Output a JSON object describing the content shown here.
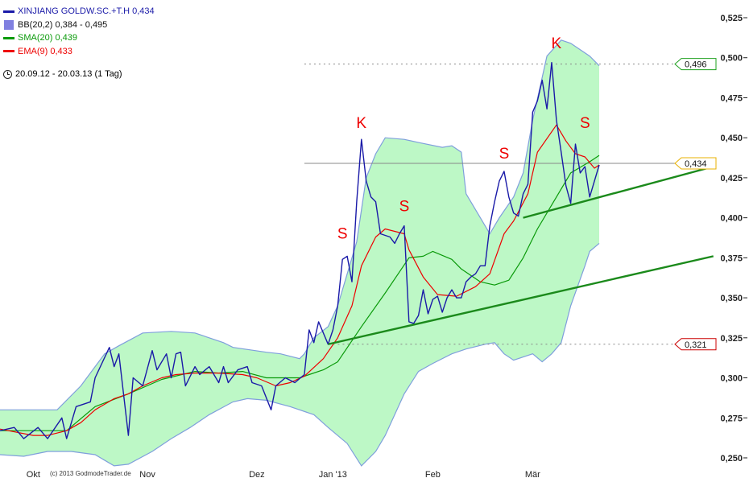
{
  "legend": {
    "price": {
      "label": "XINJIANG GOLDW.SC.+T.H 0,434",
      "color": "#1a1aa8"
    },
    "bb": {
      "label": "BB(20,2) 0,384 - 0,495",
      "color": "#8080e0"
    },
    "sma": {
      "label": "SMA(20) 0,439",
      "color": "#0a9a0a"
    },
    "ema": {
      "label": "EMA(9) 0,433",
      "color": "#ee0000"
    }
  },
  "period": {
    "icon": "clock-icon",
    "label": "20.09.12 - 20.03.13 (1 Tag)"
  },
  "copyright": "(c) 2013 GodmodeTrader.de",
  "chart_data": {
    "type": "line",
    "xlabel": "",
    "ylabel": "",
    "ylim": [
      0.245,
      0.53
    ],
    "grid": false,
    "y_ticks": [
      "0,525",
      "0,500",
      "0,475",
      "0,450",
      "0,425",
      "0,400",
      "0,375",
      "0,350",
      "0,325",
      "0,300",
      "0,275",
      "0,250"
    ],
    "y_tick_values": [
      0.525,
      0.5,
      0.475,
      0.45,
      0.425,
      0.4,
      0.375,
      0.35,
      0.325,
      0.3,
      0.275,
      0.25
    ],
    "x_ticks": [
      {
        "label": "Okt",
        "index": 7
      },
      {
        "label": "Nov",
        "index": 31
      },
      {
        "label": "Dez",
        "index": 54
      },
      {
        "label": "Jan '13",
        "index": 70
      },
      {
        "label": "Feb",
        "index": 91
      },
      {
        "label": "Mär",
        "index": 112
      }
    ],
    "x_unit": "trading day index",
    "series": [
      {
        "name": "XINJIANG GOLDW.SC.+T.H",
        "color": "#1a1aa8",
        "points": [
          [
            0,
            0.267
          ],
          [
            3,
            0.269
          ],
          [
            5,
            0.262
          ],
          [
            8,
            0.269
          ],
          [
            10,
            0.262
          ],
          [
            13,
            0.275
          ],
          [
            14,
            0.262
          ],
          [
            16,
            0.282
          ],
          [
            19,
            0.285
          ],
          [
            20,
            0.3
          ],
          [
            23,
            0.319
          ],
          [
            24,
            0.307
          ],
          [
            25,
            0.315
          ],
          [
            27,
            0.264
          ],
          [
            28,
            0.3
          ],
          [
            30,
            0.295
          ],
          [
            32,
            0.317
          ],
          [
            33,
            0.305
          ],
          [
            35,
            0.315
          ],
          [
            36,
            0.3
          ],
          [
            37,
            0.315
          ],
          [
            38,
            0.316
          ],
          [
            39,
            0.295
          ],
          [
            41,
            0.307
          ],
          [
            42,
            0.302
          ],
          [
            44,
            0.307
          ],
          [
            46,
            0.297
          ],
          [
            47,
            0.307
          ],
          [
            48,
            0.297
          ],
          [
            50,
            0.305
          ],
          [
            52,
            0.307
          ],
          [
            53,
            0.297
          ],
          [
            55,
            0.295
          ],
          [
            57,
            0.28
          ],
          [
            58,
            0.295
          ],
          [
            60,
            0.3
          ],
          [
            62,
            0.297
          ],
          [
            64,
            0.302
          ],
          [
            65,
            0.33
          ],
          [
            66,
            0.322
          ],
          [
            67,
            0.335
          ],
          [
            69,
            0.321
          ],
          [
            70,
            0.33
          ],
          [
            71,
            0.345
          ],
          [
            72,
            0.374
          ],
          [
            73,
            0.376
          ],
          [
            74,
            0.36
          ],
          [
            75,
            0.41
          ],
          [
            76,
            0.449
          ],
          [
            77,
            0.423
          ],
          [
            78,
            0.413
          ],
          [
            79,
            0.41
          ],
          [
            80,
            0.39
          ],
          [
            81,
            0.389
          ],
          [
            82,
            0.388
          ],
          [
            83,
            0.384
          ],
          [
            84,
            0.39
          ],
          [
            85,
            0.395
          ],
          [
            86,
            0.335
          ],
          [
            87,
            0.334
          ],
          [
            88,
            0.339
          ],
          [
            89,
            0.355
          ],
          [
            90,
            0.34
          ],
          [
            91,
            0.349
          ],
          [
            92,
            0.351
          ],
          [
            93,
            0.341
          ],
          [
            94,
            0.35
          ],
          [
            95,
            0.355
          ],
          [
            96,
            0.35
          ],
          [
            97,
            0.35
          ],
          [
            98,
            0.36
          ],
          [
            99,
            0.363
          ],
          [
            100,
            0.365
          ],
          [
            101,
            0.37
          ],
          [
            102,
            0.37
          ],
          [
            103,
            0.395
          ],
          [
            104,
            0.41
          ],
          [
            105,
            0.423
          ],
          [
            106,
            0.429
          ],
          [
            107,
            0.413
          ],
          [
            108,
            0.403
          ],
          [
            109,
            0.401
          ],
          [
            110,
            0.415
          ],
          [
            111,
            0.421
          ],
          [
            112,
            0.466
          ],
          [
            113,
            0.473
          ],
          [
            114,
            0.486
          ],
          [
            115,
            0.468
          ],
          [
            116,
            0.497
          ],
          [
            117,
            0.461
          ],
          [
            118,
            0.441
          ],
          [
            119,
            0.42
          ],
          [
            120,
            0.409
          ],
          [
            121,
            0.446
          ],
          [
            122,
            0.428
          ],
          [
            123,
            0.432
          ],
          [
            124,
            0.413
          ],
          [
            126,
            0.433
          ]
        ]
      },
      {
        "name": "SMA(20)",
        "color": "#0a9a0a",
        "points": [
          [
            0,
            0.267
          ],
          [
            14,
            0.267
          ],
          [
            20,
            0.282
          ],
          [
            27,
            0.29
          ],
          [
            34,
            0.299
          ],
          [
            41,
            0.304
          ],
          [
            46,
            0.303
          ],
          [
            51,
            0.304
          ],
          [
            56,
            0.3
          ],
          [
            63,
            0.3
          ],
          [
            65,
            0.302
          ],
          [
            68,
            0.305
          ],
          [
            71,
            0.31
          ],
          [
            76,
            0.332
          ],
          [
            81,
            0.353
          ],
          [
            86,
            0.375
          ],
          [
            89,
            0.376
          ],
          [
            91,
            0.379
          ],
          [
            95,
            0.374
          ],
          [
            97,
            0.368
          ],
          [
            101,
            0.36
          ],
          [
            104,
            0.358
          ],
          [
            107,
            0.361
          ],
          [
            110,
            0.375
          ],
          [
            113,
            0.393
          ],
          [
            117,
            0.413
          ],
          [
            120,
            0.428
          ],
          [
            124,
            0.435
          ],
          [
            126,
            0.439
          ]
        ]
      },
      {
        "name": "EMA(9)",
        "color": "#ee0000",
        "points": [
          [
            0,
            0.268
          ],
          [
            7,
            0.264
          ],
          [
            10,
            0.264
          ],
          [
            14,
            0.267
          ],
          [
            17,
            0.272
          ],
          [
            20,
            0.28
          ],
          [
            24,
            0.287
          ],
          [
            27,
            0.29
          ],
          [
            30,
            0.295
          ],
          [
            34,
            0.3
          ],
          [
            37,
            0.302
          ],
          [
            41,
            0.303
          ],
          [
            46,
            0.303
          ],
          [
            51,
            0.302
          ],
          [
            54,
            0.3
          ],
          [
            58,
            0.295
          ],
          [
            61,
            0.297
          ],
          [
            64,
            0.301
          ],
          [
            68,
            0.312
          ],
          [
            71,
            0.325
          ],
          [
            74,
            0.345
          ],
          [
            76,
            0.37
          ],
          [
            79,
            0.388
          ],
          [
            81,
            0.393
          ],
          [
            85,
            0.39
          ],
          [
            86,
            0.38
          ],
          [
            89,
            0.363
          ],
          [
            92,
            0.352
          ],
          [
            96,
            0.351
          ],
          [
            100,
            0.357
          ],
          [
            103,
            0.365
          ],
          [
            106,
            0.39
          ],
          [
            108,
            0.398
          ],
          [
            111,
            0.415
          ],
          [
            113,
            0.441
          ],
          [
            117,
            0.458
          ],
          [
            119,
            0.448
          ],
          [
            121,
            0.44
          ],
          [
            123,
            0.438
          ],
          [
            125,
            0.431
          ],
          [
            126,
            0.433
          ]
        ]
      }
    ],
    "bollinger": {
      "name": "BB(20,2)",
      "fill": "#bdf8c6",
      "stroke": "#7f9fdc",
      "upper": [
        [
          0,
          0.28
        ],
        [
          12,
          0.28
        ],
        [
          17,
          0.295
        ],
        [
          22,
          0.315
        ],
        [
          25,
          0.32
        ],
        [
          30,
          0.328
        ],
        [
          36,
          0.329
        ],
        [
          41,
          0.328
        ],
        [
          47,
          0.322
        ],
        [
          49,
          0.319
        ],
        [
          56,
          0.316
        ],
        [
          59,
          0.315
        ],
        [
          63,
          0.312
        ],
        [
          64,
          0.315
        ],
        [
          66,
          0.325
        ],
        [
          69,
          0.332
        ],
        [
          71,
          0.345
        ],
        [
          75,
          0.385
        ],
        [
          77,
          0.425
        ],
        [
          79,
          0.44
        ],
        [
          81,
          0.45
        ],
        [
          85,
          0.449
        ],
        [
          88,
          0.447
        ],
        [
          93,
          0.444
        ],
        [
          95,
          0.445
        ],
        [
          97,
          0.441
        ],
        [
          98,
          0.415
        ],
        [
          101,
          0.4
        ],
        [
          103,
          0.39
        ],
        [
          105,
          0.4
        ],
        [
          108,
          0.413
        ],
        [
          110,
          0.428
        ],
        [
          112,
          0.461
        ],
        [
          115,
          0.501
        ],
        [
          118,
          0.511
        ],
        [
          120,
          0.509
        ],
        [
          124,
          0.501
        ],
        [
          126,
          0.495
        ]
      ],
      "lower": [
        [
          0,
          0.252
        ],
        [
          5,
          0.251
        ],
        [
          10,
          0.254
        ],
        [
          15,
          0.254
        ],
        [
          20,
          0.252
        ],
        [
          24,
          0.245
        ],
        [
          27,
          0.246
        ],
        [
          32,
          0.254
        ],
        [
          36,
          0.262
        ],
        [
          40,
          0.269
        ],
        [
          44,
          0.277
        ],
        [
          49,
          0.285
        ],
        [
          52,
          0.287
        ],
        [
          56,
          0.286
        ],
        [
          61,
          0.282
        ],
        [
          66,
          0.277
        ],
        [
          69,
          0.269
        ],
        [
          73,
          0.259
        ],
        [
          76,
          0.245
        ],
        [
          79,
          0.254
        ],
        [
          81,
          0.264
        ],
        [
          85,
          0.29
        ],
        [
          88,
          0.304
        ],
        [
          91,
          0.309
        ],
        [
          95,
          0.315
        ],
        [
          98,
          0.318
        ],
        [
          102,
          0.321
        ],
        [
          104,
          0.322
        ],
        [
          106,
          0.315
        ],
        [
          108,
          0.311
        ],
        [
          112,
          0.315
        ],
        [
          114,
          0.31
        ],
        [
          116,
          0.315
        ],
        [
          118,
          0.322
        ],
        [
          120,
          0.345
        ],
        [
          123,
          0.37
        ],
        [
          124,
          0.379
        ],
        [
          126,
          0.384
        ]
      ]
    },
    "trendlines": [
      {
        "color": "#1b8a1b",
        "from": [
          69,
          0.321
        ],
        "to": [
          150,
          0.376
        ]
      },
      {
        "color": "#1b8a1b",
        "from": [
          110,
          0.4
        ],
        "to": [
          150,
          0.432
        ]
      }
    ],
    "horizontal_lines": [
      {
        "value": 0.496,
        "from_index": 64,
        "style": "dotted",
        "color": "#888888"
      },
      {
        "value": 0.434,
        "from_index": 64,
        "style": "solid",
        "color": "#888888"
      },
      {
        "value": 0.321,
        "from_index": 69,
        "style": "dotted",
        "color": "#888888"
      }
    ],
    "value_tags": [
      {
        "label": "0,496",
        "value": 0.496,
        "color": "#1ea01e"
      },
      {
        "label": "0,434",
        "value": 0.434,
        "color": "#e8b000"
      },
      {
        "label": "0,321",
        "value": 0.321,
        "color": "#cc0000"
      }
    ],
    "annotations": [
      {
        "text": "S",
        "index": 72,
        "value": 0.387
      },
      {
        "text": "K",
        "index": 76,
        "value": 0.456
      },
      {
        "text": "S",
        "index": 85,
        "value": 0.404
      },
      {
        "text": "S",
        "index": 106,
        "value": 0.437
      },
      {
        "text": "K",
        "index": 117,
        "value": 0.506
      },
      {
        "text": "S",
        "index": 123,
        "value": 0.456
      }
    ]
  }
}
